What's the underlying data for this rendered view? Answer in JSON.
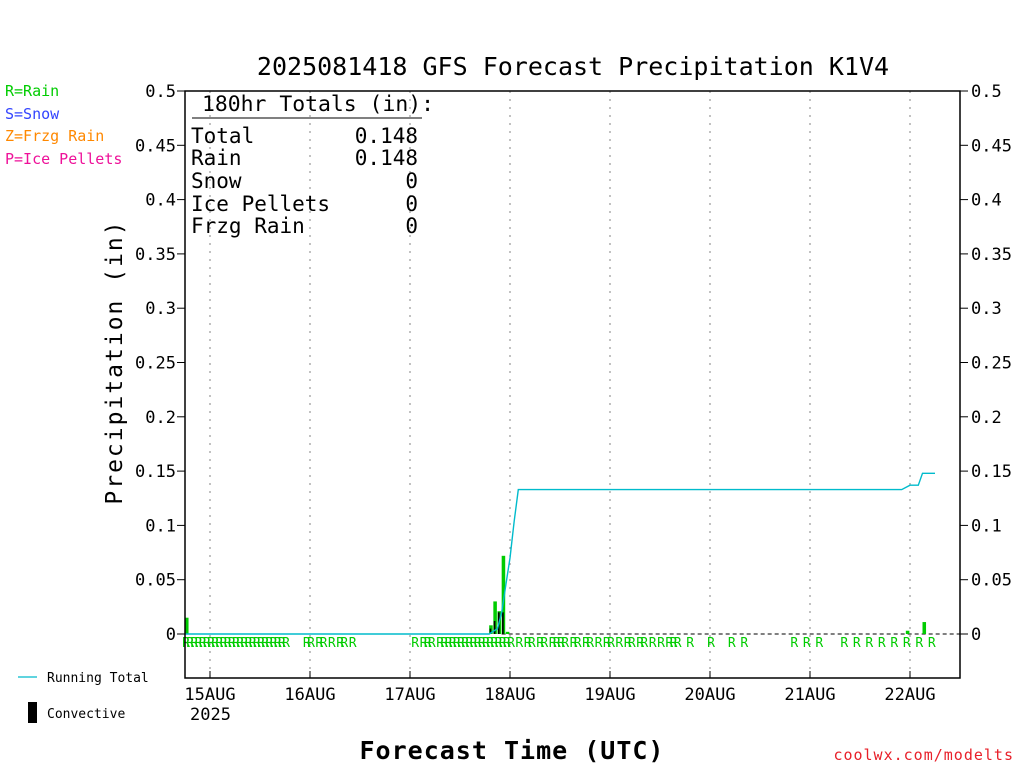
{
  "chart_data": {
    "type": "bar",
    "title": "2025081418 GFS Forecast Precipitation K1V4",
    "xlabel": "Forecast Time (UTC)",
    "ylabel": "Precipitation (in)",
    "ylim": [
      0,
      0.5
    ],
    "xlim_hours": [
      0,
      186
    ],
    "yticks": [
      "0",
      "0.05",
      "0.1",
      "0.15",
      "0.2",
      "0.25",
      "0.3",
      "0.35",
      "0.4",
      "0.45",
      "0.5"
    ],
    "xticks": [
      {
        "hour": 6,
        "label": "15AUG"
      },
      {
        "hour": 30,
        "label": "16AUG"
      },
      {
        "hour": 54,
        "label": "17AUG"
      },
      {
        "hour": 78,
        "label": "18AUG"
      },
      {
        "hour": 102,
        "label": "19AUG"
      },
      {
        "hour": 126,
        "label": "20AUG"
      },
      {
        "hour": 150,
        "label": "21AUG"
      },
      {
        "hour": 174,
        "label": "22AUG"
      }
    ],
    "year_label": "2025",
    "ptype_legend": [
      {
        "label": "R=Rain",
        "color": "#00cc00"
      },
      {
        "label": "S=Snow",
        "color": "#3344ff"
      },
      {
        "label": "Z=Frzg Rain",
        "color": "#ff8800"
      },
      {
        "label": "P=Ice Pellets",
        "color": "#ee1199"
      }
    ],
    "totals": {
      "header": "180hr Totals (in):",
      "rows": [
        {
          "label": "Total",
          "value": "0.148"
        },
        {
          "label": "Rain",
          "value": "0.148"
        },
        {
          "label": "Snow",
          "value": "0"
        },
        {
          "label": "Ice Pellets",
          "value": "0"
        },
        {
          "label": "Frzg Rain",
          "value": "0"
        }
      ]
    },
    "series": [
      {
        "name": "Running Total",
        "color": "#00bbcc",
        "type": "line",
        "x": [
          0,
          73,
          75,
          76,
          77,
          78,
          79,
          80,
          170,
          172,
          174,
          176,
          177,
          180
        ],
        "y": [
          0,
          0,
          0.005,
          0.02,
          0.045,
          0.07,
          0.104,
          0.133,
          0.133,
          0.133,
          0.137,
          0.137,
          0.148,
          0.148
        ]
      },
      {
        "name": "Convective",
        "color": "#000000",
        "type": "bar",
        "x": [
          73,
          74,
          75,
          76
        ],
        "y": [
          0.005,
          0.012,
          0.02,
          0.02
        ]
      },
      {
        "name": "Rain",
        "color": "#00cc00",
        "type": "bar",
        "x": [
          0,
          73,
          74,
          75,
          76,
          77,
          173,
          177
        ],
        "y": [
          0.015,
          0.008,
          0.03,
          0.021,
          0.072,
          0.002,
          0.003,
          0.011
        ]
      }
    ],
    "ptype_marker": "R",
    "ptype_hours": [
      0,
      1,
      2,
      3,
      4,
      5,
      6,
      7,
      8,
      9,
      10,
      11,
      12,
      13,
      14,
      15,
      16,
      17,
      18,
      19,
      20,
      21,
      22,
      23,
      24,
      29,
      30,
      32,
      33,
      35,
      37,
      38,
      40,
      55,
      57,
      58,
      59,
      61,
      62,
      63,
      64,
      65,
      66,
      67,
      68,
      69,
      70,
      71,
      72,
      73,
      74,
      75,
      76,
      77,
      78,
      80,
      82,
      83,
      85,
      86,
      88,
      89,
      90,
      91,
      93,
      94,
      96,
      97,
      99,
      101,
      102,
      104,
      106,
      107,
      109,
      110,
      112,
      114,
      116,
      117,
      118,
      121,
      126,
      131,
      134,
      146,
      149,
      152,
      158,
      161,
      164,
      167,
      170,
      173,
      176,
      179
    ],
    "legend": [
      {
        "name": "Running Total",
        "kind": "line",
        "color": "#00bbcc"
      },
      {
        "name": "Convective",
        "kind": "bar",
        "color": "#000000"
      }
    ],
    "credit": "coolwx.com/modelts",
    "grid": "vertical dotted at day boundaries"
  }
}
